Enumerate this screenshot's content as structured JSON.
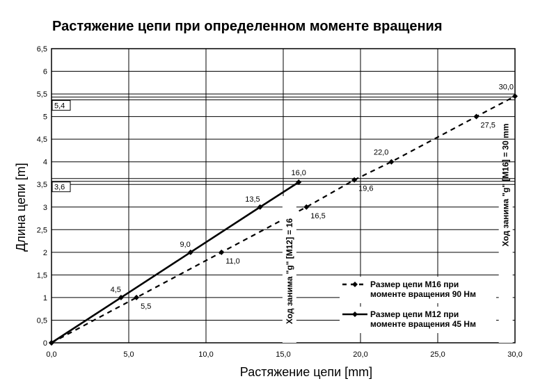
{
  "chart_data": {
    "type": "line",
    "title": "Растяжение цепи при определенном моменте вращения",
    "xlabel": "Растяжение цепи [mm]",
    "ylabel": "Длина цепи [m]",
    "xlim": [
      0,
      30
    ],
    "ylim": [
      0,
      6.5
    ],
    "x_ticks": [
      "0,0",
      "5,0",
      "10,0",
      "15,0",
      "20,0",
      "25,0",
      "30,0"
    ],
    "y_ticks": [
      "0",
      "0,5",
      "1",
      "1,5",
      "2",
      "2,5",
      "3",
      "3,5",
      "4",
      "4,5",
      "5",
      "5,5",
      "6",
      "6,5"
    ],
    "grid": true,
    "legend_position": "bottom-right",
    "series": [
      {
        "name": "Размер цепи M16 при моменте вращения 90 Нм",
        "legend_lines": [
          "Размер цепи M16 при",
          "моменте вращения 90 Нм"
        ],
        "style": "dashed",
        "color": "#000000",
        "points": [
          {
            "x": 0,
            "y": 0,
            "label": ""
          },
          {
            "x": 5.5,
            "y": 1,
            "label": "5,5"
          },
          {
            "x": 11.0,
            "y": 2,
            "label": "11,0"
          },
          {
            "x": 16.5,
            "y": 3,
            "label": "16,5"
          },
          {
            "x": 19.6,
            "y": 3.6,
            "label": "19,6"
          },
          {
            "x": 22.0,
            "y": 4,
            "label": "22,0"
          },
          {
            "x": 27.5,
            "y": 5,
            "label": "27,5"
          },
          {
            "x": 30.0,
            "y": 5.45,
            "label": "30,0"
          }
        ]
      },
      {
        "name": "Размер цепи M12 при моменте вращения 45 Нм",
        "legend_lines": [
          "Размер цепи M12 при",
          "моменте вращения 45 Нм"
        ],
        "style": "solid",
        "color": "#000000",
        "points": [
          {
            "x": 0,
            "y": 0,
            "label": ""
          },
          {
            "x": 4.5,
            "y": 1,
            "label": "4,5"
          },
          {
            "x": 9.0,
            "y": 2,
            "label": "9,0"
          },
          {
            "x": 13.5,
            "y": 3,
            "label": "13,5"
          },
          {
            "x": 16.0,
            "y": 3.55,
            "label": "16,0"
          }
        ]
      }
    ],
    "reference_lines": [
      {
        "y": 5.4,
        "label": "5,4"
      },
      {
        "y": 3.6,
        "label": "3,6"
      }
    ],
    "annotations": [
      {
        "text": "Ход занима \"g\" [M12] = 16",
        "x": 15.4
      },
      {
        "text": "Ход занима \"g\" [M16] = 30 mm",
        "x": 29.4
      }
    ]
  }
}
